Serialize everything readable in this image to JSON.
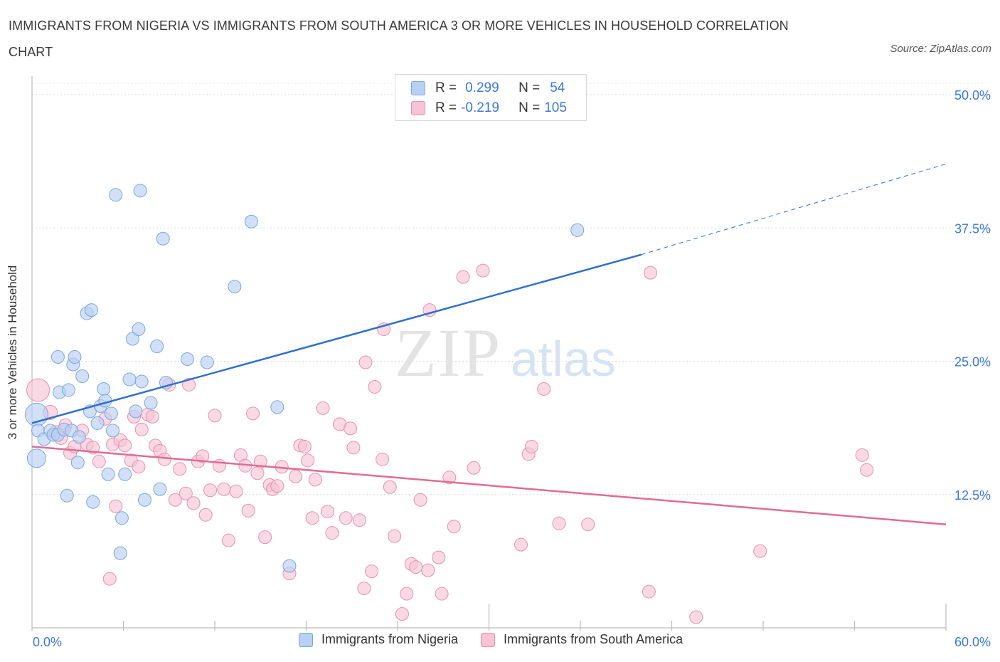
{
  "header": {
    "title": "IMMIGRANTS FROM NIGERIA VS IMMIGRANTS FROM SOUTH AMERICA 3 OR MORE VEHICLES IN HOUSEHOLD CORRELATION CHART",
    "source": "Source: ZipAtlas.com"
  },
  "legend": {
    "row1": {
      "r_label": "R =",
      "r_value": "0.299",
      "n_label": "N =",
      "n_value": "54"
    },
    "row2": {
      "r_label": "R =",
      "r_value": "-0.219",
      "n_label": "N =",
      "n_value": "105"
    }
  },
  "watermark": {
    "zip": "ZIP",
    "atlas": "atlas"
  },
  "colors": {
    "blue_fill": "#b8d0f2",
    "blue_stroke": "#7aa6e0",
    "blue_line": "#2f6fcf",
    "pink_fill": "#f6c4d4",
    "pink_stroke": "#e890ae",
    "pink_line": "#e36a96",
    "axis_text": "#3c78d8",
    "grid": "#d9d9d9"
  },
  "chart_data": {
    "type": "scatter",
    "title": "IMMIGRANTS FROM NIGERIA VS IMMIGRANTS FROM SOUTH AMERICA 3 OR MORE VEHICLES IN HOUSEHOLD CORRELATION CHART",
    "xlabel": "",
    "ylabel": "3 or more Vehicles in Household",
    "xlim": [
      0,
      60
    ],
    "ylim": [
      0,
      50
    ],
    "x_tick_labels": [
      "0.0%",
      "60.0%"
    ],
    "y_ticks": [
      12.5,
      25,
      37.5,
      50
    ],
    "y_tick_labels": [
      "12.5%",
      "25.0%",
      "37.5%",
      "50.0%"
    ],
    "grid": true,
    "legend_position": "top-center",
    "series": [
      {
        "name": "Immigrants from Nigeria",
        "color": "#b8d0f2",
        "r": 0.299,
        "n": 54,
        "trend": {
          "x0": 0,
          "y0": 19.2,
          "x1": 40,
          "y1": 35.0,
          "dashed_to_x": 60,
          "dashed_to_y": 43.5
        },
        "points": [
          {
            "x": 0.3,
            "y": 20.0,
            "s": 16
          },
          {
            "x": 0.3,
            "y": 15.9,
            "s": 13
          },
          {
            "x": 0.4,
            "y": 18.5,
            "s": 9
          },
          {
            "x": 0.8,
            "y": 17.7,
            "s": 9
          },
          {
            "x": 1.2,
            "y": 18.5,
            "s": 9
          },
          {
            "x": 1.4,
            "y": 18.1,
            "s": 9
          },
          {
            "x": 1.7,
            "y": 25.4,
            "s": 9
          },
          {
            "x": 1.7,
            "y": 18.1,
            "s": 9
          },
          {
            "x": 1.8,
            "y": 22.1,
            "s": 9
          },
          {
            "x": 2.1,
            "y": 18.6,
            "s": 9
          },
          {
            "x": 2.3,
            "y": 12.4,
            "s": 9
          },
          {
            "x": 2.4,
            "y": 22.3,
            "s": 9
          },
          {
            "x": 2.6,
            "y": 18.5,
            "s": 9
          },
          {
            "x": 2.7,
            "y": 24.7,
            "s": 9
          },
          {
            "x": 2.8,
            "y": 25.4,
            "s": 9
          },
          {
            "x": 3.0,
            "y": 15.5,
            "s": 9
          },
          {
            "x": 3.1,
            "y": 17.9,
            "s": 9
          },
          {
            "x": 3.3,
            "y": 23.6,
            "s": 9
          },
          {
            "x": 3.6,
            "y": 29.5,
            "s": 9
          },
          {
            "x": 3.8,
            "y": 20.3,
            "s": 9
          },
          {
            "x": 3.9,
            "y": 29.8,
            "s": 9
          },
          {
            "x": 4.0,
            "y": 11.8,
            "s": 9
          },
          {
            "x": 4.3,
            "y": 19.2,
            "s": 9
          },
          {
            "x": 4.5,
            "y": 20.8,
            "s": 9
          },
          {
            "x": 4.7,
            "y": 22.4,
            "s": 9
          },
          {
            "x": 4.8,
            "y": 21.3,
            "s": 9
          },
          {
            "x": 5.0,
            "y": 14.4,
            "s": 9
          },
          {
            "x": 5.2,
            "y": 20.1,
            "s": 9
          },
          {
            "x": 5.3,
            "y": 18.5,
            "s": 9
          },
          {
            "x": 5.5,
            "y": 40.6,
            "s": 9
          },
          {
            "x": 5.8,
            "y": 7.0,
            "s": 9
          },
          {
            "x": 5.9,
            "y": 10.3,
            "s": 9
          },
          {
            "x": 6.1,
            "y": 14.4,
            "s": 9
          },
          {
            "x": 6.4,
            "y": 23.3,
            "s": 9
          },
          {
            "x": 6.6,
            "y": 27.1,
            "s": 9
          },
          {
            "x": 6.8,
            "y": 20.3,
            "s": 9
          },
          {
            "x": 7.0,
            "y": 28.0,
            "s": 9
          },
          {
            "x": 7.1,
            "y": 41.0,
            "s": 9
          },
          {
            "x": 7.2,
            "y": 23.1,
            "s": 9
          },
          {
            "x": 7.4,
            "y": 12.0,
            "s": 9
          },
          {
            "x": 7.8,
            "y": 21.1,
            "s": 9
          },
          {
            "x": 8.2,
            "y": 26.4,
            "s": 9
          },
          {
            "x": 8.4,
            "y": 13.0,
            "s": 9
          },
          {
            "x": 8.6,
            "y": 36.5,
            "s": 9
          },
          {
            "x": 8.8,
            "y": 23.0,
            "s": 9
          },
          {
            "x": 10.2,
            "y": 25.2,
            "s": 9
          },
          {
            "x": 11.5,
            "y": 24.9,
            "s": 9
          },
          {
            "x": 13.3,
            "y": 32.0,
            "s": 9
          },
          {
            "x": 14.4,
            "y": 38.1,
            "s": 9
          },
          {
            "x": 16.1,
            "y": 20.7,
            "s": 9
          },
          {
            "x": 16.9,
            "y": 5.8,
            "s": 9
          },
          {
            "x": 35.8,
            "y": 37.3,
            "s": 9
          }
        ]
      },
      {
        "name": "Immigrants from South America",
        "color": "#f6c4d4",
        "r": -0.219,
        "n": 105,
        "trend": {
          "x0": 0,
          "y0": 17.0,
          "x1": 60,
          "y1": 9.7
        },
        "points": [
          {
            "x": 0.4,
            "y": 22.3,
            "s": 16
          },
          {
            "x": 1.2,
            "y": 20.2,
            "s": 10
          },
          {
            "x": 1.6,
            "y": 18.3,
            "s": 10
          },
          {
            "x": 1.9,
            "y": 17.8,
            "s": 9
          },
          {
            "x": 2.2,
            "y": 19.0,
            "s": 9
          },
          {
            "x": 2.5,
            "y": 16.4,
            "s": 9
          },
          {
            "x": 2.8,
            "y": 17.0,
            "s": 9
          },
          {
            "x": 3.3,
            "y": 18.5,
            "s": 9
          },
          {
            "x": 3.6,
            "y": 17.2,
            "s": 9
          },
          {
            "x": 4.0,
            "y": 16.9,
            "s": 9
          },
          {
            "x": 4.4,
            "y": 15.6,
            "s": 9
          },
          {
            "x": 4.8,
            "y": 19.6,
            "s": 9
          },
          {
            "x": 5.1,
            "y": 4.6,
            "s": 9
          },
          {
            "x": 5.3,
            "y": 17.2,
            "s": 9
          },
          {
            "x": 5.5,
            "y": 11.4,
            "s": 9
          },
          {
            "x": 5.8,
            "y": 17.6,
            "s": 9
          },
          {
            "x": 6.1,
            "y": 17.1,
            "s": 9
          },
          {
            "x": 6.5,
            "y": 15.7,
            "s": 9
          },
          {
            "x": 6.7,
            "y": 19.8,
            "s": 9
          },
          {
            "x": 7.0,
            "y": 15.1,
            "s": 9
          },
          {
            "x": 7.2,
            "y": 18.6,
            "s": 9
          },
          {
            "x": 7.6,
            "y": 20.0,
            "s": 9
          },
          {
            "x": 7.9,
            "y": 19.8,
            "s": 9
          },
          {
            "x": 8.1,
            "y": 17.1,
            "s": 9
          },
          {
            "x": 8.4,
            "y": 16.6,
            "s": 9
          },
          {
            "x": 8.7,
            "y": 15.8,
            "s": 9
          },
          {
            "x": 9.0,
            "y": 22.8,
            "s": 9
          },
          {
            "x": 9.4,
            "y": 12.0,
            "s": 9
          },
          {
            "x": 9.7,
            "y": 14.9,
            "s": 9
          },
          {
            "x": 10.1,
            "y": 12.6,
            "s": 9
          },
          {
            "x": 10.3,
            "y": 22.8,
            "s": 9
          },
          {
            "x": 10.6,
            "y": 11.7,
            "s": 9
          },
          {
            "x": 10.9,
            "y": 15.6,
            "s": 9
          },
          {
            "x": 11.2,
            "y": 16.1,
            "s": 9
          },
          {
            "x": 11.4,
            "y": 10.6,
            "s": 9
          },
          {
            "x": 11.7,
            "y": 12.9,
            "s": 9
          },
          {
            "x": 12.0,
            "y": 19.9,
            "s": 9
          },
          {
            "x": 12.3,
            "y": 15.2,
            "s": 9
          },
          {
            "x": 12.6,
            "y": 13.0,
            "s": 9
          },
          {
            "x": 12.9,
            "y": 8.2,
            "s": 9
          },
          {
            "x": 13.4,
            "y": 12.8,
            "s": 9
          },
          {
            "x": 13.7,
            "y": 16.2,
            "s": 9
          },
          {
            "x": 14.0,
            "y": 15.2,
            "s": 9
          },
          {
            "x": 14.2,
            "y": 11.0,
            "s": 9
          },
          {
            "x": 14.5,
            "y": 20.1,
            "s": 9
          },
          {
            "x": 14.8,
            "y": 14.5,
            "s": 9
          },
          {
            "x": 15.0,
            "y": 15.6,
            "s": 9
          },
          {
            "x": 15.3,
            "y": 8.5,
            "s": 9
          },
          {
            "x": 15.6,
            "y": 13.4,
            "s": 9
          },
          {
            "x": 15.8,
            "y": 13.0,
            "s": 9
          },
          {
            "x": 16.1,
            "y": 13.3,
            "s": 9
          },
          {
            "x": 16.4,
            "y": 15.1,
            "s": 9
          },
          {
            "x": 16.9,
            "y": 5.1,
            "s": 9
          },
          {
            "x": 17.3,
            "y": 14.2,
            "s": 9
          },
          {
            "x": 17.6,
            "y": 17.1,
            "s": 9
          },
          {
            "x": 17.9,
            "y": 17.0,
            "s": 9
          },
          {
            "x": 18.1,
            "y": 15.7,
            "s": 9
          },
          {
            "x": 18.4,
            "y": 10.3,
            "s": 9
          },
          {
            "x": 18.6,
            "y": 13.9,
            "s": 9
          },
          {
            "x": 19.1,
            "y": 20.6,
            "s": 9
          },
          {
            "x": 19.4,
            "y": 10.9,
            "s": 9
          },
          {
            "x": 19.7,
            "y": 8.9,
            "s": 9
          },
          {
            "x": 20.2,
            "y": 19.1,
            "s": 9
          },
          {
            "x": 20.6,
            "y": 10.3,
            "s": 9
          },
          {
            "x": 20.9,
            "y": 18.7,
            "s": 9
          },
          {
            "x": 21.1,
            "y": 16.9,
            "s": 9
          },
          {
            "x": 21.5,
            "y": 10.1,
            "s": 9
          },
          {
            "x": 21.8,
            "y": 3.7,
            "s": 9
          },
          {
            "x": 21.9,
            "y": 24.9,
            "s": 9
          },
          {
            "x": 22.3,
            "y": 5.3,
            "s": 9
          },
          {
            "x": 22.5,
            "y": 22.6,
            "s": 9
          },
          {
            "x": 23.0,
            "y": 15.8,
            "s": 9
          },
          {
            "x": 23.1,
            "y": 28.0,
            "s": 9
          },
          {
            "x": 23.5,
            "y": 13.2,
            "s": 9
          },
          {
            "x": 23.8,
            "y": 8.6,
            "s": 9
          },
          {
            "x": 24.3,
            "y": 1.3,
            "s": 9
          },
          {
            "x": 24.6,
            "y": 3.2,
            "s": 9
          },
          {
            "x": 24.9,
            "y": 6.0,
            "s": 9
          },
          {
            "x": 25.2,
            "y": 5.7,
            "s": 9
          },
          {
            "x": 25.5,
            "y": 12.0,
            "s": 9
          },
          {
            "x": 26.0,
            "y": 5.4,
            "s": 9
          },
          {
            "x": 26.1,
            "y": 29.8,
            "s": 9
          },
          {
            "x": 26.7,
            "y": 6.6,
            "s": 9
          },
          {
            "x": 26.9,
            "y": 3.2,
            "s": 9
          },
          {
            "x": 27.4,
            "y": 14.1,
            "s": 9
          },
          {
            "x": 27.7,
            "y": 9.5,
            "s": 9
          },
          {
            "x": 28.3,
            "y": 32.9,
            "s": 9
          },
          {
            "x": 29.0,
            "y": 15.0,
            "s": 9
          },
          {
            "x": 29.6,
            "y": 33.5,
            "s": 9
          },
          {
            "x": 32.1,
            "y": 7.8,
            "s": 9
          },
          {
            "x": 32.6,
            "y": 16.3,
            "s": 9
          },
          {
            "x": 32.8,
            "y": 17.0,
            "s": 9
          },
          {
            "x": 33.6,
            "y": 22.4,
            "s": 9
          },
          {
            "x": 34.6,
            "y": 9.8,
            "s": 9
          },
          {
            "x": 36.5,
            "y": 9.7,
            "s": 9
          },
          {
            "x": 40.6,
            "y": 33.3,
            "s": 9
          },
          {
            "x": 40.5,
            "y": 3.4,
            "s": 9
          },
          {
            "x": 43.6,
            "y": 1.0,
            "s": 9
          },
          {
            "x": 47.8,
            "y": 7.2,
            "s": 9
          },
          {
            "x": 54.5,
            "y": 16.2,
            "s": 9
          },
          {
            "x": 54.8,
            "y": 14.8,
            "s": 9
          }
        ]
      }
    ]
  },
  "bottom_legend": {
    "series1": "Immigrants from Nigeria",
    "series2": "Immigrants from South America"
  }
}
